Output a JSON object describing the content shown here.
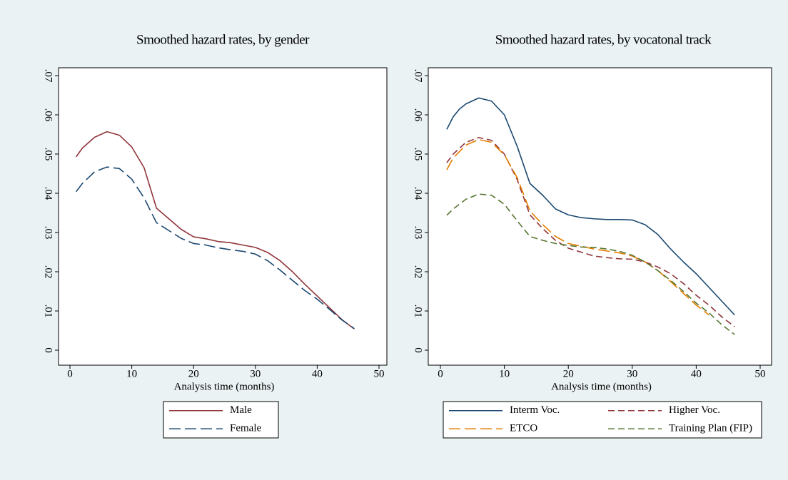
{
  "chart_data": [
    {
      "type": "line",
      "title": "Smoothed hazard rates, by gender",
      "x_label": "Analysis time (months)",
      "xlim": [
        0,
        50
      ],
      "xticks": [
        0,
        10,
        20,
        30,
        40,
        50
      ],
      "ylim": [
        0,
        0.07
      ],
      "yticks": [
        0,
        {
          "value": 0.01,
          "label": ".01"
        },
        {
          "value": 0.02,
          "label": ".02"
        },
        {
          "value": 0.03,
          "label": ".03"
        },
        {
          "value": 0.04,
          "label": ".04"
        },
        {
          "value": 0.05,
          "label": ".05"
        },
        {
          "value": 0.06,
          "label": ".06"
        },
        {
          "value": 0.07,
          "label": ".07"
        }
      ],
      "grid": false,
      "legend_columns": 1,
      "series": [
        {
          "name": "Male",
          "color": "#90353b",
          "style": "solid",
          "x": [
            1,
            2,
            4,
            6,
            8,
            10,
            12,
            14,
            16,
            18,
            20,
            22,
            24,
            26,
            28,
            30,
            32,
            34,
            36,
            38,
            40,
            42,
            44,
            46
          ],
          "values": [
            0.0493,
            0.0515,
            0.0543,
            0.0557,
            0.0548,
            0.0518,
            0.0465,
            0.0362,
            0.0335,
            0.0308,
            0.0289,
            0.0284,
            0.0277,
            0.0274,
            0.0268,
            0.0262,
            0.0249,
            0.0228,
            0.02,
            0.0168,
            0.0138,
            0.0108,
            0.0078,
            0.0054
          ]
        },
        {
          "name": "Female",
          "color": "#1a476f",
          "style": "longdash",
          "x": [
            1,
            2,
            4,
            6,
            8,
            10,
            12,
            14,
            16,
            18,
            20,
            22,
            24,
            26,
            28,
            30,
            32,
            34,
            36,
            38,
            40,
            42,
            44,
            46
          ],
          "values": [
            0.0404,
            0.0425,
            0.0455,
            0.0467,
            0.0463,
            0.0436,
            0.0388,
            0.0325,
            0.0305,
            0.0285,
            0.0272,
            0.0268,
            0.0261,
            0.0256,
            0.0252,
            0.0245,
            0.0228,
            0.0204,
            0.0178,
            0.0152,
            0.013,
            0.0104,
            0.0077,
            0.0055
          ]
        }
      ]
    },
    {
      "type": "line",
      "title": "Smoothed hazard rates, by vocatonal track",
      "x_label": "Analysis time (months)",
      "xlim": [
        0,
        50
      ],
      "xticks": [
        0,
        10,
        20,
        30,
        40,
        50
      ],
      "ylim": [
        0,
        0.07
      ],
      "yticks": [
        0,
        {
          "value": 0.01,
          "label": ".01"
        },
        {
          "value": 0.02,
          "label": ".02"
        },
        {
          "value": 0.03,
          "label": ".03"
        },
        {
          "value": 0.04,
          "label": ".04"
        },
        {
          "value": 0.05,
          "label": ".05"
        },
        {
          "value": 0.06,
          "label": ".06"
        },
        {
          "value": 0.07,
          "label": ".07"
        }
      ],
      "grid": false,
      "legend_columns": 2,
      "series": [
        {
          "name": "Interm Voc.",
          "color": "#1a476f",
          "style": "solid",
          "x": [
            1,
            2,
            3,
            4,
            6,
            8,
            10,
            12,
            14,
            16,
            18,
            20,
            22,
            24,
            26,
            28,
            30,
            32,
            34,
            36,
            38,
            40,
            42,
            44,
            46
          ],
          "values": [
            0.0563,
            0.0595,
            0.0615,
            0.0628,
            0.0643,
            0.0635,
            0.06,
            0.052,
            0.0425,
            0.0395,
            0.036,
            0.0345,
            0.0338,
            0.0335,
            0.0333,
            0.0333,
            0.0332,
            0.032,
            0.0295,
            0.0258,
            0.0225,
            0.0195,
            0.016,
            0.0125,
            0.009
          ]
        },
        {
          "name": "Higher Voc.",
          "color": "#90353b",
          "style": "dashed",
          "x": [
            1,
            2,
            4,
            6,
            8,
            10,
            12,
            14,
            16,
            18,
            20,
            22,
            24,
            26,
            28,
            30,
            32,
            34,
            36,
            38,
            40,
            42,
            44,
            46
          ],
          "values": [
            0.0478,
            0.05,
            0.053,
            0.0542,
            0.0535,
            0.05,
            0.0435,
            0.0345,
            0.031,
            0.028,
            0.026,
            0.025,
            0.024,
            0.0236,
            0.0233,
            0.0232,
            0.0225,
            0.0212,
            0.0195,
            0.017,
            0.014,
            0.0115,
            0.0085,
            0.006
          ]
        },
        {
          "name": "ETCO",
          "color": "#e37e00",
          "style": "longdash",
          "x": [
            1,
            2,
            4,
            6,
            8,
            10,
            12,
            14,
            16,
            18,
            20,
            22,
            24,
            26,
            28,
            30,
            32,
            34,
            36,
            38,
            40,
            42
          ],
          "values": [
            0.046,
            0.049,
            0.0523,
            0.0537,
            0.053,
            0.0498,
            0.044,
            0.0355,
            0.032,
            0.029,
            0.0272,
            0.0265,
            0.0258,
            0.0253,
            0.0248,
            0.024,
            0.0225,
            0.0203,
            0.0175,
            0.0145,
            0.0115,
            0.009
          ]
        },
        {
          "name": "Training Plan (FIP)",
          "color": "#55752f",
          "style": "dashed",
          "x": [
            1,
            2,
            4,
            6,
            8,
            10,
            12,
            14,
            16,
            18,
            20,
            22,
            24,
            26,
            28,
            30,
            32,
            34,
            36,
            38,
            40,
            42,
            44,
            46
          ],
          "values": [
            0.0344,
            0.036,
            0.0385,
            0.0398,
            0.0395,
            0.0372,
            0.033,
            0.029,
            0.028,
            0.0272,
            0.0267,
            0.0263,
            0.0262,
            0.0258,
            0.0252,
            0.0242,
            0.0225,
            0.0203,
            0.0178,
            0.015,
            0.012,
            0.0095,
            0.0065,
            0.004
          ]
        }
      ]
    }
  ]
}
